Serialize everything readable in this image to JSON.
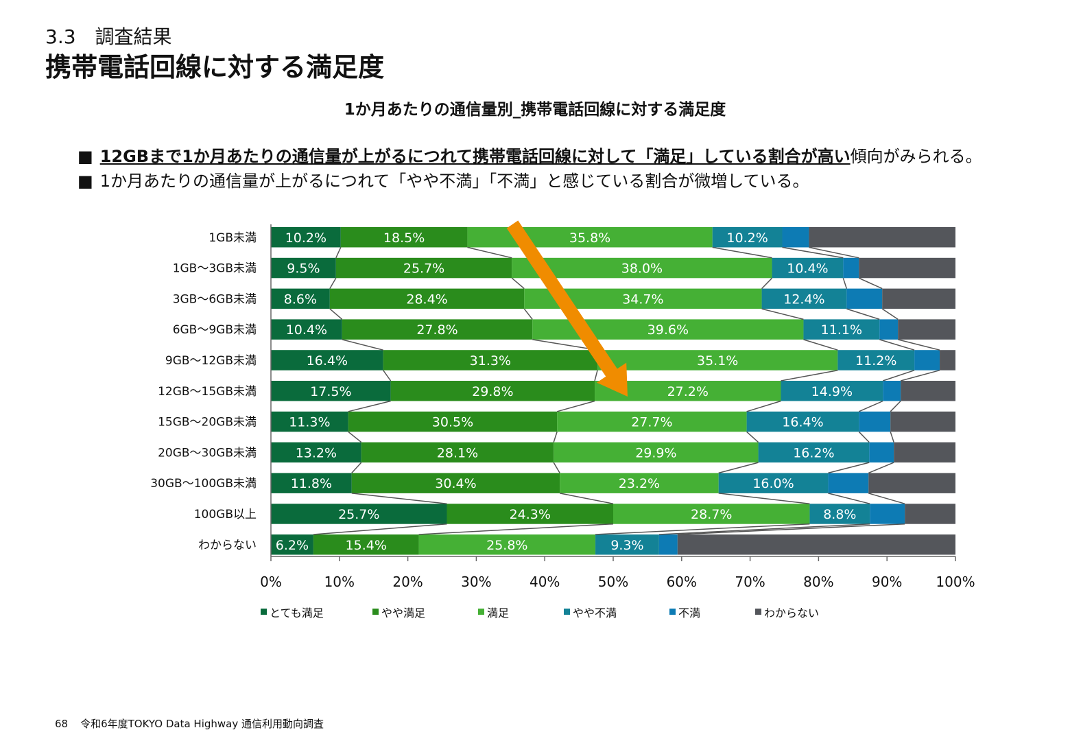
{
  "header": {
    "section": "3.3　調査結果",
    "title": "携帯電話回線に対する満足度"
  },
  "bullets": [
    {
      "mark": "■",
      "highlight": "12GBまで1か月あたりの通信量が上がるにつれて携帯電話回線に対して「満足」している割合が高い",
      "rest": "傾向がみられる。"
    },
    {
      "mark": "■",
      "text": "1か月あたりの通信量が上がるにつれて「やや不満」「不満」と感じている割合が微増している。"
    }
  ],
  "chart_data": {
    "type": "bar",
    "orientation": "horizontal",
    "stacked": "100%",
    "title": "1か月あたりの通信量別_携帯電話回線に対する満足度",
    "categories": [
      "1GB未満",
      "1GB～3GB未満",
      "3GB～6GB未満",
      "6GB～9GB未満",
      "9GB～12GB未満",
      "12GB～15GB未満",
      "15GB～20GB未満",
      "20GB～30GB未満",
      "30GB～100GB未満",
      "100GB以上",
      "わからない"
    ],
    "series": [
      {
        "name": "とても満足",
        "color": "#0a6b3c",
        "values": [
          10.2,
          9.5,
          8.6,
          10.4,
          16.4,
          17.5,
          11.3,
          13.2,
          11.8,
          25.7,
          6.2
        ],
        "labels": [
          "10.2%",
          "9.5%",
          "8.6%",
          "10.4%",
          "16.4%",
          "17.5%",
          "11.3%",
          "13.2%",
          "11.8%",
          "25.7%",
          "6.2%"
        ]
      },
      {
        "name": "やや満足",
        "color": "#2a8c1c",
        "values": [
          18.5,
          25.7,
          28.4,
          27.8,
          31.3,
          29.8,
          30.5,
          28.1,
          30.4,
          24.3,
          15.4
        ],
        "labels": [
          "18.5%",
          "25.7%",
          "28.4%",
          "27.8%",
          "31.3%",
          "29.8%",
          "30.5%",
          "28.1%",
          "30.4%",
          "24.3%",
          "15.4%"
        ]
      },
      {
        "name": "満足",
        "color": "#45b035",
        "values": [
          35.8,
          38.0,
          34.7,
          39.6,
          35.1,
          27.2,
          27.7,
          29.9,
          23.2,
          28.7,
          25.8
        ],
        "labels": [
          "35.8%",
          "38.0%",
          "34.7%",
          "39.6%",
          "35.1%",
          "27.2%",
          "27.7%",
          "29.9%",
          "23.2%",
          "28.7%",
          "25.8%"
        ]
      },
      {
        "name": "やや不満",
        "color": "#138296",
        "values": [
          10.2,
          10.4,
          12.4,
          11.1,
          11.2,
          14.9,
          16.4,
          16.2,
          16.0,
          8.8,
          9.3
        ],
        "labels": [
          "10.2%",
          "10.4%",
          "12.4%",
          "11.1%",
          "11.2%",
          "14.9%",
          "16.4%",
          "16.2%",
          "16.0%",
          "8.8%",
          "9.3%"
        ]
      },
      {
        "name": "不満",
        "color": "#0d7bb4",
        "values": [
          3.9,
          2.3,
          5.2,
          2.7,
          3.7,
          2.6,
          4.6,
          3.6,
          5.9,
          5.1,
          2.7
        ],
        "labels": [
          "",
          "",
          "",
          "",
          "",
          "",
          "",
          "",
          "",
          "",
          ""
        ]
      },
      {
        "name": "わからない",
        "color": "#54565b",
        "values": [
          21.5,
          14.1,
          10.7,
          8.4,
          2.3,
          8.0,
          9.5,
          9.0,
          12.7,
          7.4,
          40.6
        ],
        "labels": [
          "",
          "",
          "",
          "",
          "",
          "",
          "",
          "",
          "",
          "",
          ""
        ]
      }
    ],
    "xlim": [
      0,
      100
    ],
    "x_ticks": [
      "0%",
      "10%",
      "20%",
      "30%",
      "40%",
      "50%",
      "60%",
      "70%",
      "80%",
      "90%",
      "100%"
    ],
    "legend_position": "bottom",
    "series_lines": true,
    "annotation": "orange arrow pointing down across the 満足 segments",
    "annotation_color": "#f08c00"
  },
  "footer": {
    "page_number": "68",
    "text": "令和6年度TOKYO Data Highway 通信利用動向調査"
  }
}
